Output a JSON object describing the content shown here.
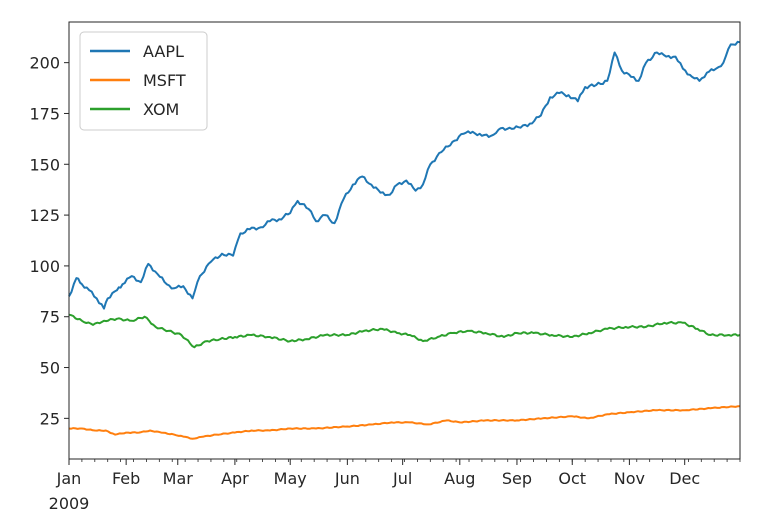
{
  "chart_data": {
    "type": "line",
    "title": "",
    "xlabel": "",
    "ylabel": "",
    "year_label": "2009",
    "x_ticks": [
      "Jan",
      "Feb",
      "Mar",
      "Apr",
      "May",
      "Jun",
      "Jul",
      "Aug",
      "Sep",
      "Oct",
      "Nov",
      "Dec"
    ],
    "y_ticks": [
      25,
      50,
      75,
      100,
      125,
      150,
      175,
      200
    ],
    "xlim": [
      "2009-01-01",
      "2009-12-31"
    ],
    "ylim": [
      5,
      220
    ],
    "grid": false,
    "legend_position": "upper-left",
    "series": [
      {
        "name": "AAPL",
        "color": "#1f77b4",
        "points": [
          [
            "2009-01-01",
            85
          ],
          [
            "2009-01-05",
            94
          ],
          [
            "2009-01-08",
            91
          ],
          [
            "2009-01-12",
            88
          ],
          [
            "2009-01-16",
            84
          ],
          [
            "2009-01-20",
            79
          ],
          [
            "2009-01-22",
            84
          ],
          [
            "2009-01-27",
            88
          ],
          [
            "2009-01-30",
            91
          ],
          [
            "2009-02-04",
            95
          ],
          [
            "2009-02-09",
            92
          ],
          [
            "2009-02-13",
            101
          ],
          [
            "2009-02-18",
            96
          ],
          [
            "2009-02-23",
            91
          ],
          [
            "2009-02-27",
            89
          ],
          [
            "2009-03-04",
            90
          ],
          [
            "2009-03-09",
            84
          ],
          [
            "2009-03-13",
            95
          ],
          [
            "2009-03-19",
            102
          ],
          [
            "2009-03-25",
            106
          ],
          [
            "2009-03-31",
            105
          ],
          [
            "2009-04-04",
            116
          ],
          [
            "2009-04-09",
            118
          ],
          [
            "2009-04-15",
            119
          ],
          [
            "2009-04-20",
            122
          ],
          [
            "2009-04-25",
            123
          ],
          [
            "2009-05-01",
            126
          ],
          [
            "2009-05-05",
            132
          ],
          [
            "2009-05-11",
            128
          ],
          [
            "2009-05-15",
            122
          ],
          [
            "2009-05-20",
            125
          ],
          [
            "2009-05-25",
            121
          ],
          [
            "2009-05-30",
            133
          ],
          [
            "2009-06-04",
            140
          ],
          [
            "2009-06-09",
            144
          ],
          [
            "2009-06-14",
            140
          ],
          [
            "2009-06-19",
            136
          ],
          [
            "2009-06-24",
            135
          ],
          [
            "2009-06-28",
            140
          ],
          [
            "2009-07-03",
            142
          ],
          [
            "2009-07-08",
            137
          ],
          [
            "2009-07-12",
            140
          ],
          [
            "2009-07-16",
            150
          ],
          [
            "2009-07-22",
            156
          ],
          [
            "2009-07-28",
            161
          ],
          [
            "2009-08-03",
            165
          ],
          [
            "2009-08-08",
            166
          ],
          [
            "2009-08-13",
            164
          ],
          [
            "2009-08-18",
            164
          ],
          [
            "2009-08-22",
            167
          ],
          [
            "2009-08-28",
            168
          ],
          [
            "2009-09-03",
            168
          ],
          [
            "2009-09-08",
            170
          ],
          [
            "2009-09-14",
            174
          ],
          [
            "2009-09-19",
            183
          ],
          [
            "2009-09-24",
            185
          ],
          [
            "2009-09-29",
            184
          ],
          [
            "2009-10-04",
            181
          ],
          [
            "2009-10-08",
            188
          ],
          [
            "2009-10-14",
            189
          ],
          [
            "2009-10-20",
            191
          ],
          [
            "2009-10-24",
            205
          ],
          [
            "2009-10-28",
            196
          ],
          [
            "2009-11-02",
            193
          ],
          [
            "2009-11-06",
            191
          ],
          [
            "2009-11-10",
            200
          ],
          [
            "2009-11-16",
            205
          ],
          [
            "2009-11-21",
            203
          ],
          [
            "2009-11-26",
            203
          ],
          [
            "2009-11-30",
            197
          ],
          [
            "2009-12-05",
            193
          ],
          [
            "2009-12-09",
            191
          ],
          [
            "2009-12-13",
            195
          ],
          [
            "2009-12-18",
            197
          ],
          [
            "2009-12-22",
            200
          ],
          [
            "2009-12-26",
            209
          ],
          [
            "2009-12-31",
            210
          ]
        ]
      },
      {
        "name": "MSFT",
        "color": "#ff7f0e",
        "points": [
          [
            "2009-01-01",
            20
          ],
          [
            "2009-01-08",
            20
          ],
          [
            "2009-01-15",
            19
          ],
          [
            "2009-01-21",
            19
          ],
          [
            "2009-01-26",
            17
          ],
          [
            "2009-02-01",
            18
          ],
          [
            "2009-02-08",
            18
          ],
          [
            "2009-02-14",
            19
          ],
          [
            "2009-02-20",
            18
          ],
          [
            "2009-02-27",
            17
          ],
          [
            "2009-03-04",
            16
          ],
          [
            "2009-03-09",
            15
          ],
          [
            "2009-03-15",
            16
          ],
          [
            "2009-03-22",
            17
          ],
          [
            "2009-04-01",
            18
          ],
          [
            "2009-04-10",
            19
          ],
          [
            "2009-04-20",
            19
          ],
          [
            "2009-05-01",
            20
          ],
          [
            "2009-05-15",
            20
          ],
          [
            "2009-06-01",
            21
          ],
          [
            "2009-06-15",
            22
          ],
          [
            "2009-06-25",
            23
          ],
          [
            "2009-07-05",
            23
          ],
          [
            "2009-07-15",
            22
          ],
          [
            "2009-07-25",
            24
          ],
          [
            "2009-08-01",
            23
          ],
          [
            "2009-08-15",
            24
          ],
          [
            "2009-09-01",
            24
          ],
          [
            "2009-09-15",
            25
          ],
          [
            "2009-10-01",
            26
          ],
          [
            "2009-10-10",
            25
          ],
          [
            "2009-10-20",
            27
          ],
          [
            "2009-11-01",
            28
          ],
          [
            "2009-11-15",
            29
          ],
          [
            "2009-12-01",
            29
          ],
          [
            "2009-12-15",
            30
          ],
          [
            "2009-12-31",
            31
          ]
        ]
      },
      {
        "name": "XOM",
        "color": "#2ca02c",
        "points": [
          [
            "2009-01-01",
            76
          ],
          [
            "2009-01-08",
            73
          ],
          [
            "2009-01-14",
            71
          ],
          [
            "2009-01-20",
            73
          ],
          [
            "2009-01-27",
            74
          ],
          [
            "2009-02-04",
            73
          ],
          [
            "2009-02-11",
            75
          ],
          [
            "2009-02-17",
            70
          ],
          [
            "2009-02-24",
            68
          ],
          [
            "2009-03-03",
            66
          ],
          [
            "2009-03-10",
            60
          ],
          [
            "2009-03-17",
            63
          ],
          [
            "2009-03-24",
            64
          ],
          [
            "2009-04-01",
            65
          ],
          [
            "2009-04-10",
            66
          ],
          [
            "2009-04-20",
            65
          ],
          [
            "2009-05-01",
            63
          ],
          [
            "2009-05-10",
            64
          ],
          [
            "2009-05-20",
            66
          ],
          [
            "2009-06-01",
            66
          ],
          [
            "2009-06-10",
            68
          ],
          [
            "2009-06-20",
            69
          ],
          [
            "2009-06-28",
            67
          ],
          [
            "2009-07-05",
            66
          ],
          [
            "2009-07-12",
            63
          ],
          [
            "2009-07-20",
            65
          ],
          [
            "2009-07-28",
            67
          ],
          [
            "2009-08-05",
            68
          ],
          [
            "2009-08-15",
            67
          ],
          [
            "2009-08-25",
            65
          ],
          [
            "2009-09-01",
            67
          ],
          [
            "2009-09-10",
            67
          ],
          [
            "2009-09-20",
            66
          ],
          [
            "2009-10-01",
            65
          ],
          [
            "2009-10-10",
            67
          ],
          [
            "2009-10-20",
            69
          ],
          [
            "2009-10-30",
            70
          ],
          [
            "2009-11-10",
            70
          ],
          [
            "2009-11-20",
            72
          ],
          [
            "2009-11-30",
            72
          ],
          [
            "2009-12-08",
            69
          ],
          [
            "2009-12-15",
            66
          ],
          [
            "2009-12-25",
            66
          ],
          [
            "2009-12-31",
            66
          ]
        ]
      }
    ]
  }
}
